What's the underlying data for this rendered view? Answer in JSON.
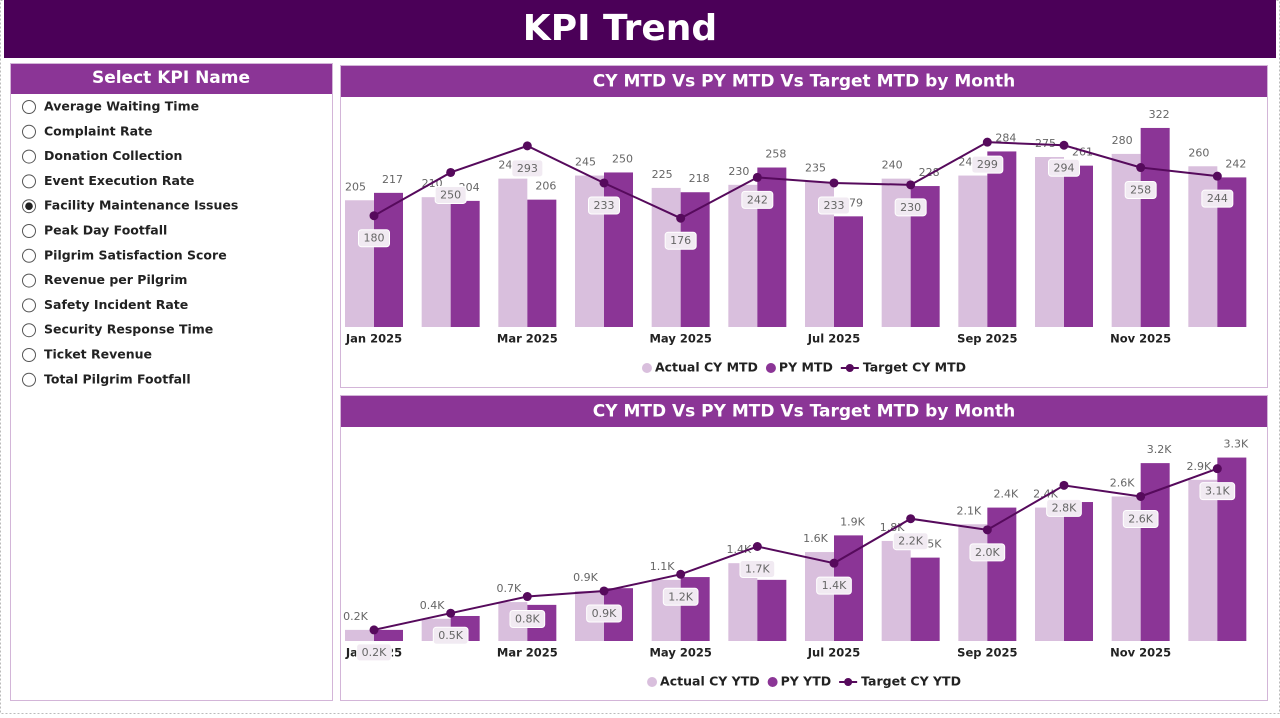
{
  "header": {
    "title": "KPI Trend"
  },
  "slicer": {
    "title": "Select KPI Name",
    "items": [
      "Average Waiting Time",
      "Complaint Rate",
      "Donation Collection",
      "Event Execution Rate",
      "Facility Maintenance Issues",
      "Peak Day Footfall",
      "Pilgrim Satisfaction Score",
      "Revenue per Pilgrim",
      "Safety Incident Rate",
      "Security Response Time",
      "Ticket Revenue",
      "Total Pilgrim Footfall"
    ],
    "selected": 4
  },
  "chart_data": [
    {
      "type": "combo",
      "title": "CY MTD Vs PY MTD Vs Target MTD by Month",
      "categories": [
        "Jan 2025",
        null,
        "Mar 2025",
        null,
        "May 2025",
        null,
        "Jul 2025",
        null,
        "Sep 2025",
        null,
        "Nov 2025",
        null
      ],
      "ylim": [
        0,
        330
      ],
      "series": [
        {
          "name": "Actual CY MTD",
          "type": "bar",
          "color": "#d9bfdd",
          "values": [
            205,
            210,
            240,
            245,
            225,
            230,
            235,
            240,
            245,
            275,
            280,
            260
          ]
        },
        {
          "name": "PY MTD",
          "type": "bar",
          "color": "#8b3596",
          "values": [
            217,
            204,
            206,
            250,
            218,
            258,
            179,
            228,
            284,
            261,
            322,
            242
          ]
        },
        {
          "name": "Target CY MTD",
          "type": "line",
          "color": "#560a5c",
          "values": [
            180,
            250,
            293,
            233,
            176,
            242,
            233,
            230,
            299,
            294,
            258,
            244
          ]
        }
      ]
    },
    {
      "type": "combo",
      "title": "CY MTD Vs PY MTD Vs Target MTD by Month",
      "categories": [
        "Jan 2025",
        null,
        "Mar 2025",
        null,
        "May 2025",
        null,
        "Jul 2025",
        null,
        "Sep 2025",
        null,
        "Nov 2025",
        null
      ],
      "ylim": [
        0,
        3400
      ],
      "series": [
        {
          "name": "Actual CY YTD",
          "type": "bar",
          "color": "#d9bfdd",
          "values": [
            200,
            400,
            700,
            900,
            1100,
            1400,
            1600,
            1800,
            2100,
            2400,
            2600,
            2900
          ],
          "value_labels": [
            "0.2K",
            "0.4K",
            "0.7K",
            "0.9K",
            "1.1K",
            "1.4K",
            "1.6K",
            "1.8K",
            "2.1K",
            "2.4K",
            "2.6K",
            "2.9K"
          ]
        },
        {
          "name": "PY YTD",
          "type": "bar",
          "color": "#8b3596",
          "values": [
            200,
            450,
            650,
            950,
            1150,
            1100,
            1900,
            1500,
            2400,
            2500,
            3200,
            3300
          ],
          "value_labels": [
            null,
            null,
            null,
            null,
            null,
            null,
            "1.9K",
            "1.5K",
            "2.4K",
            null,
            "3.2K",
            "3.3K"
          ]
        },
        {
          "name": "Target CY YTD",
          "type": "line",
          "color": "#560a5c",
          "values": [
            200,
            500,
            800,
            900,
            1200,
            1700,
            1400,
            2200,
            2000,
            2800,
            2600,
            3100
          ],
          "value_labels": [
            "0.2K",
            "0.5K",
            "0.8K",
            "0.9K",
            "1.2K",
            "1.7K",
            "1.4K",
            "2.2K",
            "2.0K",
            "2.8K",
            "2.6K",
            "3.1K"
          ]
        }
      ]
    }
  ]
}
